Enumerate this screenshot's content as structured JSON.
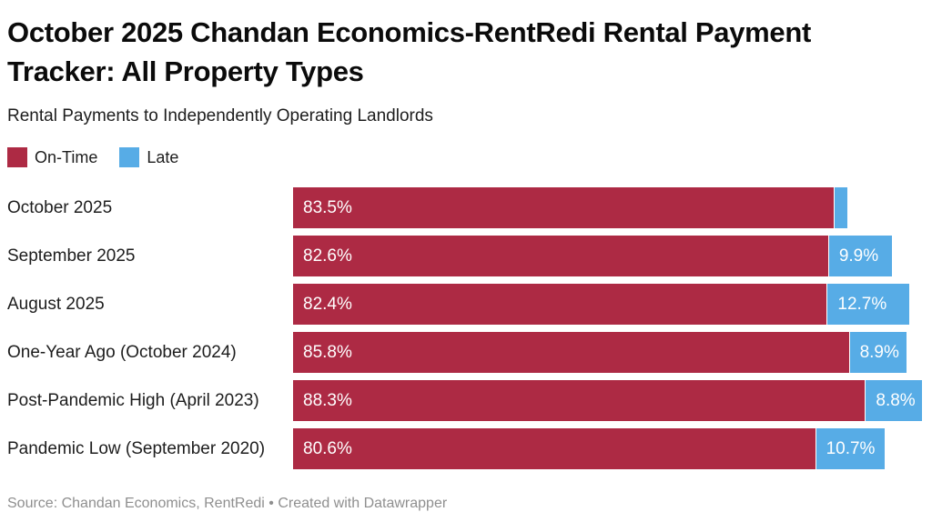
{
  "header": {
    "title": "October 2025 Chandan Economics-RentRedi Rental Payment Tracker: All Property Types",
    "subtitle": "Rental Payments to Independently Operating Landlords"
  },
  "legend": [
    {
      "label": "On-Time",
      "color": "#ad2a44"
    },
    {
      "label": "Late",
      "color": "#57ace6"
    }
  ],
  "chart_data": {
    "type": "bar",
    "orientation": "horizontal",
    "stacked": true,
    "grid": false,
    "legend_position": "top-left",
    "title": "October 2025 Chandan Economics-RentRedi Rental Payment Tracker: All Property Types",
    "subtitle": "Rental Payments to Independently Operating Landlords",
    "categories": [
      "October 2025",
      "September 2025",
      "August 2025",
      "One-Year Ago (October 2024)",
      "Post-Pandemic High (April 2023)",
      "Pandemic Low (September 2020)"
    ],
    "series": [
      {
        "name": "On-Time",
        "color": "#ad2a44",
        "values": [
          83.5,
          82.6,
          82.4,
          85.8,
          88.3,
          80.6
        ],
        "labels": [
          "83.5%",
          "82.6%",
          "82.4%",
          "85.8%",
          "88.3%",
          "80.6%"
        ]
      },
      {
        "name": "Late",
        "color": "#57ace6",
        "values": [
          2.1,
          9.9,
          12.7,
          8.9,
          8.8,
          10.7
        ],
        "labels": [
          "",
          "9.9%",
          "12.7%",
          "8.9%",
          "8.8%",
          "10.7%"
        ]
      }
    ],
    "xlim": [
      0,
      97.1
    ],
    "value_suffix": "%"
  },
  "footer": {
    "text": "Source: Chandan Economics, RentRedi • Created with Datawrapper"
  }
}
